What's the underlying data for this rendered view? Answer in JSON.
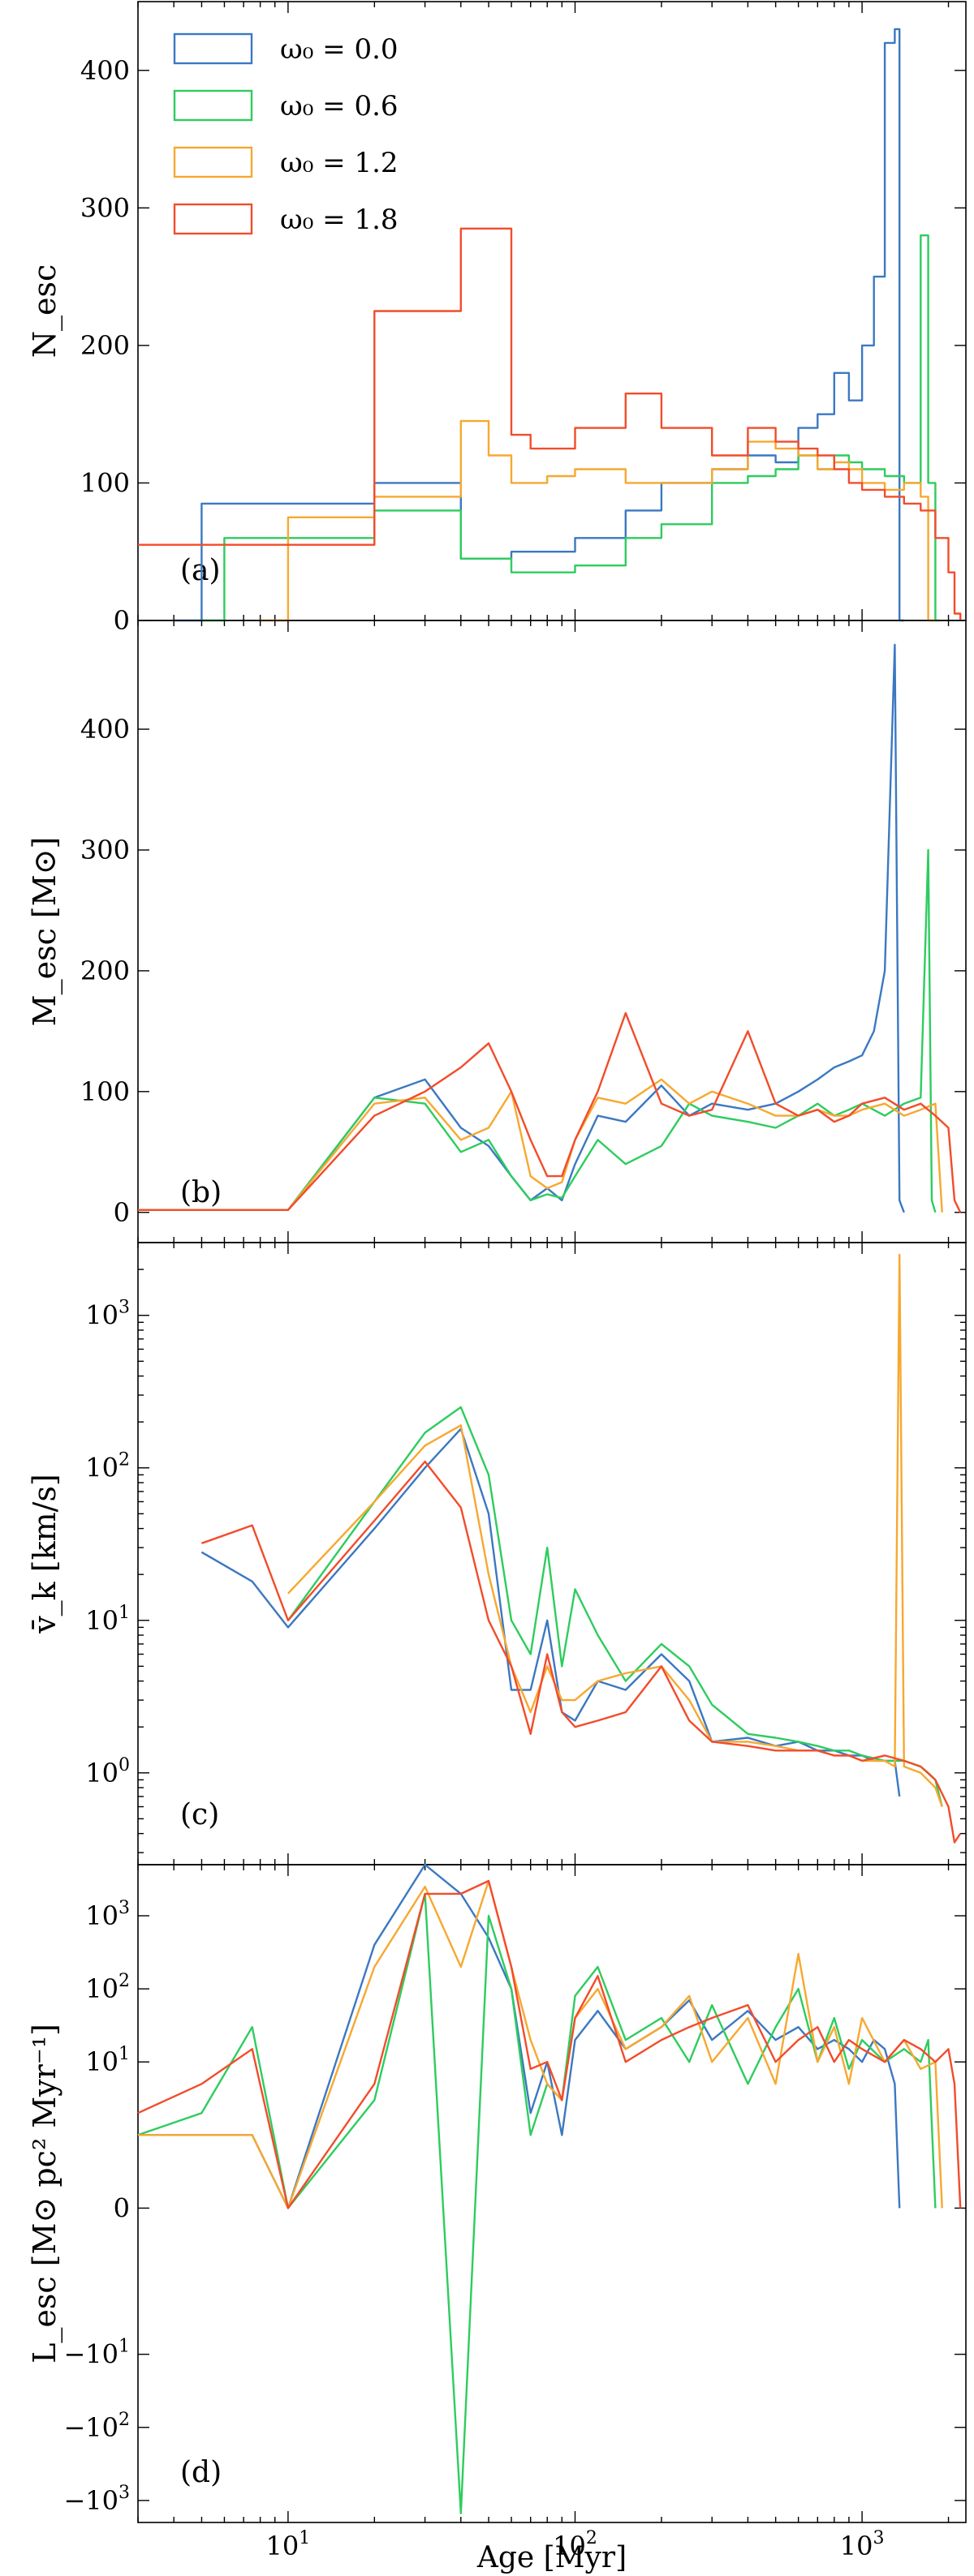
{
  "colors": {
    "w00": "#3b78c2",
    "w06": "#2ecc5e",
    "w12": "#f7a830",
    "w18": "#f24c2b"
  },
  "xlabel": "Age [Myr]",
  "xlim": [
    3,
    2300
  ],
  "xticks": [
    {
      "value": 10,
      "label": "10",
      "sup": "1"
    },
    {
      "value": 100,
      "label": "10",
      "sup": "2"
    },
    {
      "value": 1000,
      "label": "10",
      "sup": "3"
    }
  ],
  "legend": [
    {
      "key": "w00",
      "label": "ω₀ = 0.0"
    },
    {
      "key": "w06",
      "label": "ω₀ = 0.6"
    },
    {
      "key": "w12",
      "label": "ω₀ = 1.2"
    },
    {
      "key": "w18",
      "label": "ω₀ = 1.8"
    }
  ],
  "chart_data": [
    {
      "type": "line",
      "step": true,
      "panel_label": "(a)",
      "ylabel": "N_esc",
      "ylim": [
        0,
        450
      ],
      "yticks": [
        0,
        100,
        200,
        300,
        400
      ],
      "legend": "top-left",
      "series": [
        {
          "key": "w00",
          "x": [
            4,
            5,
            10,
            20,
            40,
            60,
            100,
            150,
            200,
            300,
            400,
            500,
            600,
            700,
            800,
            900,
            1000,
            1100,
            1200,
            1300,
            1350,
            1400
          ],
          "y": [
            0,
            85,
            85,
            100,
            45,
            50,
            60,
            80,
            100,
            110,
            120,
            115,
            140,
            150,
            180,
            160,
            200,
            250,
            420,
            430,
            0,
            0
          ]
        },
        {
          "key": "w06",
          "x": [
            5,
            6,
            10,
            20,
            40,
            60,
            100,
            150,
            200,
            300,
            400,
            500,
            600,
            700,
            800,
            900,
            1000,
            1200,
            1400,
            1600,
            1700,
            1800,
            1850
          ],
          "y": [
            0,
            60,
            60,
            80,
            45,
            35,
            40,
            60,
            70,
            100,
            105,
            110,
            120,
            110,
            120,
            115,
            110,
            105,
            100,
            280,
            100,
            0,
            0
          ]
        },
        {
          "key": "w12",
          "x": [
            8,
            10,
            20,
            40,
            50,
            60,
            80,
            100,
            150,
            200,
            300,
            400,
            500,
            600,
            700,
            800,
            900,
            1000,
            1200,
            1400,
            1600,
            1700,
            1800
          ],
          "y": [
            0,
            75,
            90,
            145,
            120,
            100,
            105,
            110,
            100,
            100,
            110,
            130,
            125,
            120,
            110,
            115,
            110,
            100,
            95,
            100,
            90,
            0,
            0
          ]
        },
        {
          "key": "w18",
          "x": [
            3,
            10,
            20,
            25,
            40,
            60,
            70,
            100,
            150,
            200,
            300,
            400,
            500,
            600,
            700,
            800,
            900,
            1000,
            1200,
            1400,
            1600,
            1800,
            2000,
            2100,
            2200
          ],
          "y": [
            55,
            55,
            225,
            225,
            285,
            135,
            125,
            140,
            165,
            140,
            120,
            140,
            130,
            125,
            120,
            110,
            100,
            95,
            90,
            85,
            80,
            60,
            35,
            5,
            0
          ]
        }
      ]
    },
    {
      "type": "line",
      "panel_label": "(b)",
      "ylabel": "M_esc [M⊙]",
      "ylim": [
        -25,
        490
      ],
      "yticks": [
        0,
        100,
        200,
        300,
        400
      ],
      "series": [
        {
          "key": "w00",
          "x": [
            3,
            7,
            10,
            20,
            30,
            40,
            50,
            60,
            70,
            80,
            90,
            100,
            120,
            150,
            200,
            250,
            300,
            400,
            500,
            600,
            700,
            800,
            900,
            1000,
            1100,
            1200,
            1300,
            1350,
            1400
          ],
          "y": [
            2,
            2,
            2,
            95,
            110,
            70,
            55,
            30,
            10,
            20,
            10,
            40,
            80,
            75,
            105,
            80,
            90,
            85,
            90,
            100,
            110,
            120,
            125,
            130,
            150,
            200,
            470,
            10,
            0
          ]
        },
        {
          "key": "w06",
          "x": [
            3,
            7,
            10,
            20,
            30,
            40,
            50,
            60,
            70,
            80,
            90,
            100,
            120,
            150,
            200,
            250,
            300,
            400,
            500,
            600,
            700,
            800,
            900,
            1000,
            1200,
            1400,
            1600,
            1700,
            1750,
            1800
          ],
          "y": [
            2,
            2,
            2,
            95,
            90,
            50,
            60,
            30,
            10,
            15,
            12,
            30,
            60,
            40,
            55,
            90,
            80,
            75,
            70,
            80,
            90,
            80,
            85,
            90,
            80,
            90,
            95,
            300,
            10,
            0
          ]
        },
        {
          "key": "w12",
          "x": [
            3,
            7,
            10,
            20,
            30,
            40,
            50,
            60,
            70,
            80,
            90,
            100,
            120,
            150,
            200,
            250,
            300,
            400,
            500,
            600,
            700,
            800,
            900,
            1000,
            1200,
            1400,
            1600,
            1800,
            1900
          ],
          "y": [
            2,
            2,
            2,
            90,
            95,
            60,
            70,
            100,
            30,
            20,
            25,
            60,
            95,
            90,
            110,
            90,
            100,
            90,
            80,
            80,
            85,
            80,
            80,
            85,
            90,
            80,
            85,
            90,
            0
          ]
        },
        {
          "key": "w18",
          "x": [
            3,
            7,
            10,
            20,
            30,
            40,
            50,
            60,
            70,
            80,
            90,
            100,
            120,
            150,
            200,
            250,
            300,
            400,
            500,
            600,
            700,
            800,
            900,
            1000,
            1200,
            1400,
            1600,
            1800,
            2000,
            2100,
            2200
          ],
          "y": [
            2,
            2,
            2,
            80,
            100,
            120,
            140,
            100,
            60,
            30,
            30,
            60,
            100,
            165,
            90,
            80,
            85,
            150,
            90,
            80,
            85,
            75,
            80,
            90,
            95,
            85,
            90,
            80,
            70,
            10,
            0
          ]
        }
      ]
    },
    {
      "type": "line",
      "log_y": true,
      "panel_label": "(c)",
      "ylabel": "v̄_k [km/s]",
      "ylim": [
        0.25,
        3000
      ],
      "yticks": [
        {
          "value": 1,
          "label": "10",
          "sup": "0"
        },
        {
          "value": 10,
          "label": "10",
          "sup": "1"
        },
        {
          "value": 100,
          "label": "10",
          "sup": "2"
        },
        {
          "value": 1000,
          "label": "10",
          "sup": "3"
        }
      ],
      "series": [
        {
          "key": "w00",
          "x": [
            5,
            7.5,
            10,
            20,
            30,
            40,
            50,
            60,
            70,
            80,
            90,
            100,
            120,
            150,
            200,
            250,
            300,
            400,
            500,
            600,
            700,
            800,
            900,
            1000,
            1100,
            1200,
            1300,
            1350
          ],
          "y": [
            28,
            18,
            9,
            40,
            100,
            180,
            50,
            3.5,
            3.5,
            10,
            2.5,
            2.2,
            4,
            3.5,
            6,
            4,
            1.6,
            1.7,
            1.5,
            1.6,
            1.4,
            1.4,
            1.3,
            1.3,
            1.2,
            1.2,
            1.2,
            0.7
          ]
        },
        {
          "key": "w06",
          "x": [
            10,
            20,
            30,
            40,
            50,
            60,
            70,
            80,
            90,
            100,
            120,
            150,
            200,
            250,
            300,
            400,
            500,
            600,
            700,
            800,
            900,
            1000,
            1200,
            1400,
            1600,
            1700,
            1800,
            1900
          ],
          "y": [
            10,
            60,
            170,
            250,
            90,
            10,
            6,
            30,
            5,
            16,
            8,
            4,
            7,
            5,
            2.8,
            1.8,
            1.7,
            1.6,
            1.5,
            1.4,
            1.4,
            1.3,
            1.2,
            1.2,
            1.1,
            1.0,
            0.9,
            0.6
          ]
        },
        {
          "key": "w12",
          "x": [
            10,
            20,
            30,
            40,
            50,
            60,
            70,
            80,
            90,
            100,
            120,
            150,
            200,
            250,
            300,
            400,
            500,
            600,
            700,
            800,
            900,
            1000,
            1200,
            1300,
            1350,
            1400,
            1600,
            1800,
            1900
          ],
          "y": [
            15,
            60,
            140,
            190,
            20,
            5,
            2.5,
            5,
            3,
            3,
            4,
            4.5,
            5,
            3,
            1.6,
            1.6,
            1.5,
            1.4,
            1.4,
            1.3,
            1.3,
            1.2,
            1.2,
            1.1,
            2500,
            1.1,
            1.0,
            0.8,
            0.6
          ]
        },
        {
          "key": "w18",
          "x": [
            5,
            7.5,
            10,
            20,
            30,
            40,
            50,
            60,
            70,
            80,
            90,
            100,
            120,
            150,
            200,
            250,
            300,
            400,
            500,
            600,
            700,
            800,
            900,
            1000,
            1200,
            1400,
            1600,
            1800,
            2000,
            2100,
            2200
          ],
          "y": [
            32,
            42,
            10,
            45,
            110,
            55,
            10,
            5,
            1.8,
            6,
            2.5,
            2,
            2.2,
            2.5,
            5,
            2.2,
            1.6,
            1.5,
            1.4,
            1.4,
            1.4,
            1.3,
            1.3,
            1.2,
            1.3,
            1.2,
            1.1,
            0.9,
            0.6,
            0.35,
            0.4
          ]
        }
      ]
    },
    {
      "type": "line",
      "symlog_y": true,
      "panel_label": "(d)",
      "ylabel": "L_esc [M⊙ pc² Myr⁻¹]",
      "ylim": [
        -2000,
        5000
      ],
      "yticks": [
        {
          "value": -1000,
          "label": "−10",
          "sup": "3"
        },
        {
          "value": -100,
          "label": "−10",
          "sup": "2"
        },
        {
          "value": -10,
          "label": "−10",
          "sup": "1"
        },
        {
          "value": 0,
          "label": "0",
          "sup": ""
        },
        {
          "value": 10,
          "label": "10",
          "sup": "1"
        },
        {
          "value": 100,
          "label": "10",
          "sup": "2"
        },
        {
          "value": 1000,
          "label": "10",
          "sup": "3"
        }
      ],
      "series": [
        {
          "key": "w00",
          "x": [
            3,
            5,
            7.5,
            10,
            20,
            30,
            40,
            50,
            60,
            70,
            80,
            90,
            100,
            120,
            150,
            200,
            250,
            300,
            400,
            500,
            600,
            700,
            800,
            900,
            1000,
            1100,
            1200,
            1300,
            1350
          ],
          "y": [
            1,
            1,
            1,
            0,
            400,
            5000,
            2000,
            500,
            100,
            2,
            10,
            1,
            20,
            50,
            15,
            30,
            70,
            20,
            50,
            20,
            30,
            15,
            20,
            15,
            10,
            20,
            15,
            5,
            0
          ]
        },
        {
          "key": "w06",
          "x": [
            3,
            5,
            7.5,
            10,
            20,
            30,
            40,
            50,
            60,
            70,
            80,
            90,
            100,
            120,
            150,
            200,
            250,
            300,
            400,
            500,
            600,
            700,
            800,
            900,
            1000,
            1200,
            1400,
            1600,
            1700,
            1800
          ],
          "y": [
            1,
            2,
            30,
            0,
            3,
            2000,
            -1500,
            1000,
            100,
            1,
            5,
            3,
            80,
            200,
            20,
            40,
            10,
            60,
            5,
            30,
            100,
            10,
            40,
            8,
            20,
            10,
            15,
            10,
            20,
            0
          ]
        },
        {
          "key": "w12",
          "x": [
            3,
            5,
            7.5,
            10,
            20,
            30,
            40,
            50,
            60,
            70,
            80,
            90,
            100,
            120,
            150,
            200,
            250,
            300,
            400,
            500,
            600,
            700,
            800,
            900,
            1000,
            1200,
            1400,
            1600,
            1800,
            1900
          ],
          "y": [
            1,
            1,
            1,
            0,
            200,
            2500,
            200,
            3000,
            200,
            20,
            5,
            3,
            40,
            100,
            15,
            30,
            80,
            10,
            40,
            5,
            300,
            10,
            30,
            5,
            40,
            10,
            20,
            8,
            10,
            0
          ]
        },
        {
          "key": "w18",
          "x": [
            3,
            5,
            7.5,
            10,
            20,
            30,
            40,
            50,
            60,
            70,
            80,
            90,
            100,
            120,
            150,
            200,
            250,
            300,
            400,
            500,
            600,
            700,
            800,
            900,
            1000,
            1200,
            1400,
            1600,
            1800,
            2000,
            2100,
            2200
          ],
          "y": [
            2,
            5,
            15,
            0,
            5,
            2000,
            2000,
            3000,
            200,
            8,
            10,
            3,
            40,
            150,
            10,
            20,
            30,
            40,
            60,
            10,
            20,
            30,
            10,
            20,
            15,
            10,
            20,
            15,
            10,
            15,
            5,
            0
          ]
        }
      ]
    }
  ]
}
